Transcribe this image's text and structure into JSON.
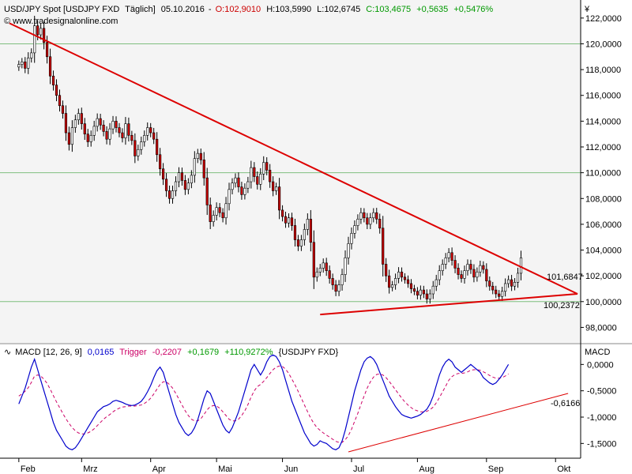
{
  "header": {
    "symbol": "USD/JPY Spot [USDJPY FXD",
    "interval": "Täglich]",
    "date": "05.10.2016",
    "open": "O:102,9010",
    "high": "H:103,5990",
    "low": "L:102,6745",
    "close": "C:103,4675",
    "change": "+0,5635",
    "change_pct": "+0,5476%",
    "copyright": "© www.tradesignalonline.com",
    "currency": "¥"
  },
  "macd_header": {
    "name": "MACD [12, 26, 9]",
    "macd_value": "0,0165",
    "trigger_label": "Trigger",
    "trigger_value": "-0,2207",
    "hist_value": "+0,1679",
    "hist_pct": "+110,9272%",
    "source": "{USDJPY FXD}",
    "axis_title": "MACD"
  },
  "annotations": {
    "resistance": "101,6847",
    "support": "100,2372",
    "macd_trend": "-0,6166"
  },
  "colors": {
    "candle_up": "#ffffff",
    "candle_down": "#cc0000",
    "trendline": "#dd0000",
    "macd": "#0000cc",
    "trigger": "#cc0066",
    "grid": "#7fbf7f",
    "plot_bg": "#f4f4f4"
  },
  "chart_data": [
    {
      "type": "candlestick",
      "title": "USD/JPY Spot",
      "y_ticks": [
        "122,0000",
        "120,0000",
        "118,0000",
        "116,0000",
        "114,0000",
        "112,0000",
        "110,0000",
        "108,0000",
        "106,0000",
        "104,0000",
        "102,0000",
        "100,0000",
        "98,0000"
      ],
      "y_tick_values": [
        122,
        120,
        118,
        116,
        114,
        112,
        110,
        108,
        106,
        104,
        102,
        100,
        98
      ],
      "ylim": [
        96.8,
        123.4
      ],
      "x_ticks": [
        "Feb",
        "Mrz",
        "Apr",
        "Mai",
        "Jun",
        "Jul",
        "Aug",
        "Sep",
        "Okt"
      ],
      "x_tick_days": [
        0,
        20,
        42,
        63,
        84,
        106,
        127,
        149,
        171
      ],
      "xlim": [
        -6,
        179
      ],
      "grid_y": [
        120,
        110,
        100
      ],
      "close": [
        118.4,
        118.6,
        118.1,
        118.9,
        119.3,
        121.4,
        120.7,
        121.2,
        120.1,
        119.0,
        117.5,
        116.8,
        116.0,
        115.2,
        114.6,
        113.1,
        112.2,
        113.5,
        114.1,
        114.6,
        113.8,
        113.0,
        112.4,
        112.9,
        113.6,
        114.2,
        113.7,
        113.2,
        112.6,
        113.4,
        114.0,
        113.5,
        113.1,
        112.7,
        113.8,
        112.9,
        112.5,
        111.3,
        111.8,
        112.4,
        112.9,
        113.5,
        113.1,
        112.6,
        111.4,
        110.3,
        109.5,
        108.6,
        108.0,
        108.6,
        109.3,
        110.0,
        109.4,
        108.7,
        109.2,
        109.8,
        111.1,
        111.5,
        111.0,
        109.6,
        107.5,
        106.2,
        106.7,
        107.3,
        106.9,
        106.5,
        107.6,
        108.7,
        109.2,
        109.6,
        108.9,
        108.3,
        108.8,
        109.3,
        110.4,
        109.7,
        109.1,
        109.9,
        110.8,
        110.2,
        109.3,
        108.6,
        108.9,
        107.1,
        106.6,
        106.1,
        106.5,
        105.9,
        104.8,
        104.3,
        104.8,
        105.6,
        106.4,
        104.6,
        101.9,
        102.3,
        102.6,
        103.0,
        102.4,
        101.8,
        101.3,
        100.8,
        101.3,
        102.1,
        103.4,
        104.5,
        105.3,
        105.9,
        106.4,
        106.9,
        106.5,
        106.0,
        106.5,
        106.9,
        106.4,
        105.7,
        102.9,
        102.0,
        101.1,
        101.3,
        101.8,
        102.3,
        101.9,
        101.7,
        101.4,
        101.0,
        100.8,
        100.5,
        100.9,
        100.6,
        100.2,
        100.6,
        101.2,
        101.7,
        102.4,
        102.9,
        103.4,
        103.8,
        103.2,
        102.6,
        102.1,
        101.8,
        102.4,
        102.9,
        102.5,
        101.9,
        102.3,
        102.8,
        102.5,
        101.6,
        101.2,
        100.9,
        100.6,
        100.4,
        100.8,
        101.4,
        101.7,
        101.2,
        101.5,
        102.2,
        103.4
      ],
      "macd": [
        -0.75,
        -0.6,
        -0.45,
        -0.25,
        -0.05,
        0.1,
        -0.1,
        -0.3,
        -0.5,
        -0.7,
        -0.9,
        -1.1,
        -1.25,
        -1.35,
        -1.45,
        -1.55,
        -1.6,
        -1.62,
        -1.58,
        -1.5,
        -1.4,
        -1.3,
        -1.2,
        -1.1,
        -1.0,
        -0.9,
        -0.85,
        -0.8,
        -0.78,
        -0.75,
        -0.7,
        -0.68,
        -0.7,
        -0.72,
        -0.75,
        -0.77,
        -0.78,
        -0.77,
        -0.74,
        -0.7,
        -0.62,
        -0.52,
        -0.4,
        -0.25,
        -0.12,
        -0.05,
        -0.15,
        -0.35,
        -0.55,
        -0.75,
        -0.95,
        -1.1,
        -1.2,
        -1.3,
        -1.35,
        -1.3,
        -1.2,
        -1.05,
        -0.85,
        -0.65,
        -0.5,
        -0.55,
        -0.7,
        -0.85,
        -1.0,
        -1.15,
        -1.25,
        -1.3,
        -1.2,
        -1.05,
        -0.9,
        -0.7,
        -0.5,
        -0.3,
        -0.1,
        0.0,
        -0.1,
        -0.2,
        -0.1,
        0.05,
        0.15,
        0.18,
        0.15,
        0.05,
        -0.1,
        -0.3,
        -0.5,
        -0.7,
        -0.85,
        -1.0,
        -1.15,
        -1.3,
        -1.4,
        -1.5,
        -1.55,
        -1.52,
        -1.45,
        -1.48,
        -1.5,
        -1.55,
        -1.6,
        -1.62,
        -1.58,
        -1.45,
        -1.25,
        -1.0,
        -0.75,
        -0.5,
        -0.3,
        -0.1,
        0.05,
        0.12,
        0.15,
        0.1,
        0.0,
        -0.15,
        -0.3,
        -0.45,
        -0.6,
        -0.7,
        -0.8,
        -0.88,
        -0.95,
        -0.98,
        -1.0,
        -1.02,
        -1.0,
        -0.98,
        -0.95,
        -0.9,
        -0.85,
        -0.75,
        -0.6,
        -0.4,
        -0.2,
        -0.05,
        0.05,
        0.1,
        0.05,
        -0.05,
        -0.1,
        -0.15,
        -0.1,
        -0.05,
        0.0,
        -0.05,
        -0.1,
        -0.15,
        -0.25,
        -0.3,
        -0.35,
        -0.38,
        -0.35,
        -0.28,
        -0.2,
        -0.1,
        0.0
      ],
      "trigger": [
        -0.6,
        -0.56,
        -0.51,
        -0.44,
        -0.34,
        -0.22,
        -0.2,
        -0.22,
        -0.28,
        -0.36,
        -0.47,
        -0.59,
        -0.71,
        -0.82,
        -0.93,
        -1.03,
        -1.12,
        -1.2,
        -1.26,
        -1.3,
        -1.32,
        -1.32,
        -1.3,
        -1.27,
        -1.22,
        -1.16,
        -1.1,
        -1.04,
        -0.99,
        -0.95,
        -0.9,
        -0.86,
        -0.83,
        -0.81,
        -0.8,
        -0.79,
        -0.79,
        -0.79,
        -0.78,
        -0.77,
        -0.74,
        -0.7,
        -0.64,
        -0.56,
        -0.47,
        -0.38,
        -0.33,
        -0.33,
        -0.38,
        -0.45,
        -0.55,
        -0.66,
        -0.77,
        -0.88,
        -0.97,
        -1.04,
        -1.07,
        -1.07,
        -1.03,
        -0.95,
        -0.86,
        -0.8,
        -0.78,
        -0.79,
        -0.83,
        -0.9,
        -0.97,
        -1.04,
        -1.07,
        -1.07,
        -1.04,
        -0.97,
        -0.88,
        -0.76,
        -0.62,
        -0.5,
        -0.42,
        -0.38,
        -0.32,
        -0.25,
        -0.17,
        -0.1,
        -0.05,
        -0.03,
        -0.04,
        -0.09,
        -0.17,
        -0.28,
        -0.39,
        -0.51,
        -0.64,
        -0.77,
        -0.9,
        -1.02,
        -1.12,
        -1.2,
        -1.25,
        -1.3,
        -1.34,
        -1.38,
        -1.42,
        -1.46,
        -1.48,
        -1.48,
        -1.43,
        -1.35,
        -1.23,
        -1.08,
        -0.93,
        -0.76,
        -0.6,
        -0.45,
        -0.33,
        -0.24,
        -0.19,
        -0.18,
        -0.2,
        -0.25,
        -0.32,
        -0.4,
        -0.48,
        -0.56,
        -0.64,
        -0.71,
        -0.77,
        -0.82,
        -0.86,
        -0.88,
        -0.9,
        -0.9,
        -0.89,
        -0.86,
        -0.81,
        -0.73,
        -0.63,
        -0.52,
        -0.41,
        -0.3,
        -0.23,
        -0.19,
        -0.17,
        -0.17,
        -0.16,
        -0.14,
        -0.11,
        -0.1,
        -0.1,
        -0.11,
        -0.14,
        -0.17,
        -0.21,
        -0.24,
        -0.26,
        -0.26,
        -0.25,
        -0.22,
        -0.18
      ],
      "macd_y_ticks": [
        "0,0000",
        "-0,5000",
        "-1,0000",
        "-1,5000"
      ],
      "macd_y_tick_values": [
        0,
        -0.5,
        -1.0,
        -1.5
      ],
      "macd_ylim": [
        -1.78,
        0.38
      ],
      "resistance_line": {
        "from": [
          -3,
          121.6
        ],
        "to": [
          178,
          100.6
        ]
      },
      "support_line": {
        "from": [
          96,
          99.0
        ],
        "to": [
          178,
          100.6
        ]
      },
      "macd_trend_line": {
        "from": [
          105,
          -1.66
        ],
        "to": [
          175,
          -0.55
        ]
      }
    }
  ]
}
